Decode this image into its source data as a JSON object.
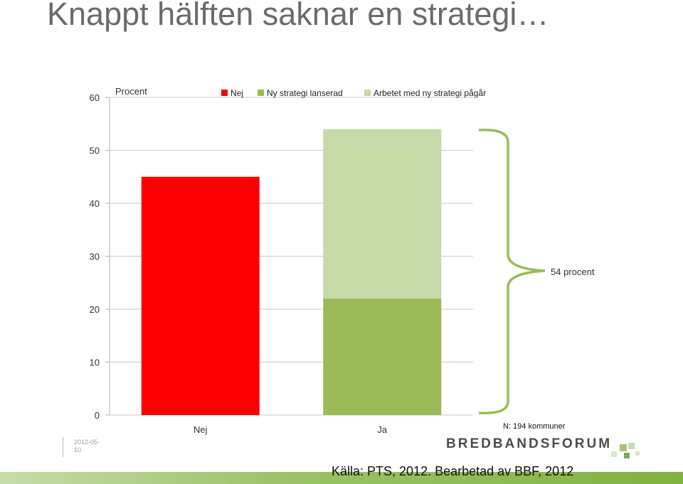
{
  "title": "Knappt hälften saknar en strategi…",
  "chart_data": {
    "type": "bar",
    "ylabel": "Procent",
    "ylim": [
      0,
      60
    ],
    "yticks": [
      0,
      10,
      20,
      30,
      40,
      50,
      60
    ],
    "categories": [
      "Nej",
      "Ja"
    ],
    "series": [
      {
        "name": "Nej",
        "color": "#ff0000",
        "values": [
          45,
          0
        ]
      },
      {
        "name": "Ny strategi lanserad",
        "color": "#9bbb59",
        "values": [
          0,
          22
        ]
      },
      {
        "name": "Arbetet med ny strategi pågår",
        "color": "#c6d9a8",
        "values": [
          0,
          32
        ]
      }
    ],
    "stacked": true,
    "grid": true,
    "legend_position": "top",
    "annotation": "54 procent"
  },
  "footer": {
    "date": "2012-05-10",
    "n_label": "N: 194 kommuner",
    "logo_part1": "BREDBANDS",
    "logo_part2": "FORUM",
    "source": "Källa: PTS, 2012. Bearbetad av BBF, 2012"
  },
  "colors": {
    "title": "#6b6b6b",
    "footer_bar": "#8dbb4f",
    "brace": "#9bbb59"
  }
}
